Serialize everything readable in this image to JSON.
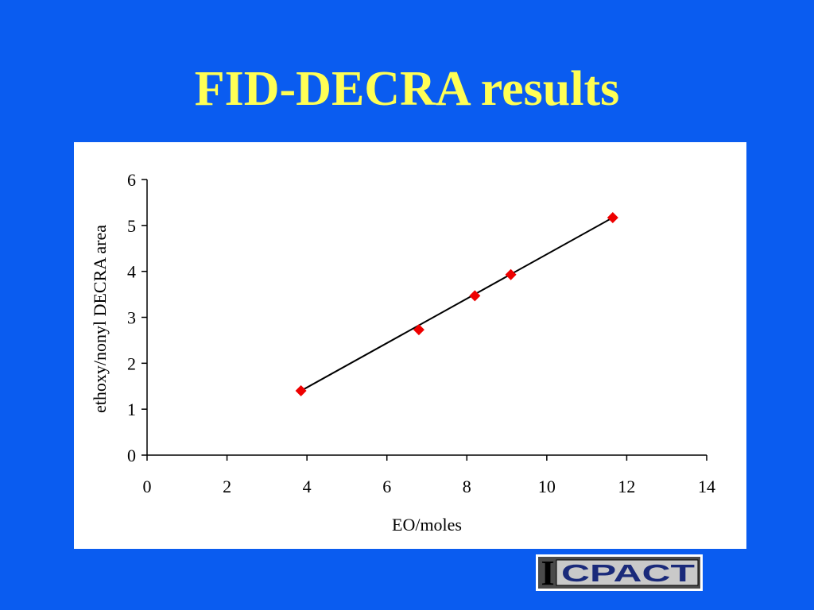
{
  "slide": {
    "title": "FID-DECRA results"
  },
  "chart_data": {
    "type": "scatter",
    "title": "",
    "xlabel": "EO/moles",
    "ylabel": "ethoxy/nonyl DECRA area",
    "xlim": [
      0,
      14
    ],
    "ylim": [
      0,
      6
    ],
    "x_ticks": [
      0,
      2,
      4,
      6,
      8,
      10,
      12,
      14
    ],
    "y_ticks": [
      0,
      1,
      2,
      3,
      4,
      5,
      6
    ],
    "grid": false,
    "legend": "none",
    "series": [
      {
        "marker": "diamond",
        "color": "#ee0000",
        "points": [
          {
            "x": 3.85,
            "y": 1.4
          },
          {
            "x": 6.8,
            "y": 2.73
          },
          {
            "x": 8.2,
            "y": 3.47
          },
          {
            "x": 9.1,
            "y": 3.93
          },
          {
            "x": 11.65,
            "y": 5.17
          }
        ]
      }
    ],
    "trendline": {
      "color": "#000000",
      "from": {
        "x": 3.85,
        "y": 1.4
      },
      "to": {
        "x": 11.65,
        "y": 5.17
      }
    }
  },
  "logo": {
    "text": "CPACT",
    "prefix": "I"
  },
  "colors": {
    "background": "#0a5cf0",
    "title": "#ffff55",
    "panel": "#ffffff",
    "marker": "#ee0000"
  }
}
